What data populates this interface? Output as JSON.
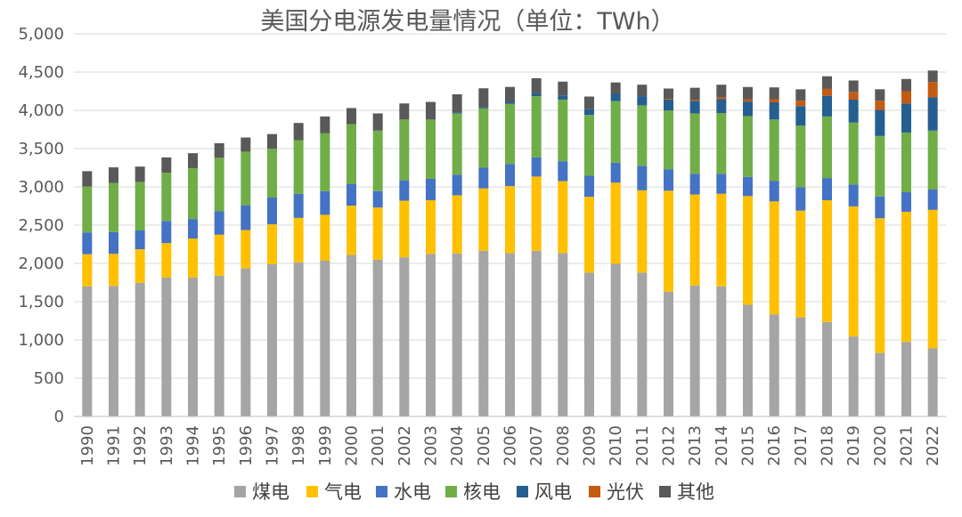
{
  "chart_data": {
    "type": "stacked-bar",
    "title": "美国分电源发电量情况（单位：TWh）",
    "xlabel": "",
    "ylabel": "",
    "ylim": [
      0,
      5000
    ],
    "ytick_step": 500,
    "ytick_labels": [
      "0",
      "500",
      "1,000",
      "1,500",
      "2,000",
      "2,500",
      "3,000",
      "3,500",
      "4,000",
      "4,500",
      "5,000"
    ],
    "grid": true,
    "legend_position": "bottom",
    "categories": [
      "1990",
      "1991",
      "1992",
      "1993",
      "1994",
      "1995",
      "1996",
      "1997",
      "1998",
      "1999",
      "2000",
      "2001",
      "2002",
      "2003",
      "2004",
      "2005",
      "2006",
      "2007",
      "2008",
      "2009",
      "2010",
      "2011",
      "2012",
      "2013",
      "2014",
      "2015",
      "2016",
      "2017",
      "2018",
      "2019",
      "2020",
      "2021",
      "2022"
    ],
    "series": [
      {
        "name": "煤电",
        "color": "#a5a5a5",
        "values": [
          1700,
          1705,
          1745,
          1815,
          1815,
          1840,
          1935,
          1990,
          2015,
          2035,
          2110,
          2050,
          2080,
          2125,
          2130,
          2165,
          2135,
          2165,
          2135,
          1880,
          1995,
          1880,
          1630,
          1710,
          1700,
          1460,
          1335,
          1295,
          1235,
          1045,
          830,
          975,
          890
        ]
      },
      {
        "name": "气电",
        "color": "#ffc000",
        "values": [
          420,
          420,
          440,
          450,
          510,
          535,
          500,
          520,
          580,
          600,
          645,
          680,
          740,
          700,
          760,
          815,
          875,
          970,
          940,
          990,
          1060,
          1075,
          1320,
          1190,
          1210,
          1420,
          1475,
          1395,
          1590,
          1700,
          1760,
          1700,
          1810
        ]
      },
      {
        "name": "水电",
        "color": "#4472c4",
        "values": [
          285,
          285,
          245,
          290,
          255,
          305,
          325,
          350,
          315,
          310,
          280,
          215,
          265,
          280,
          270,
          270,
          290,
          250,
          260,
          275,
          260,
          320,
          280,
          270,
          260,
          250,
          270,
          305,
          290,
          285,
          285,
          255,
          265
        ]
      },
      {
        "name": "核电",
        "color": "#70ad47",
        "values": [
          600,
          640,
          635,
          630,
          665,
          700,
          700,
          640,
          700,
          755,
          785,
          790,
          795,
          775,
          800,
          775,
          785,
          800,
          805,
          795,
          805,
          790,
          770,
          790,
          795,
          795,
          800,
          805,
          805,
          810,
          790,
          780,
          770
        ]
      },
      {
        "name": "风电",
        "color": "#255e91",
        "values": [
          0,
          0,
          0,
          0,
          0,
          0,
          0,
          0,
          0,
          0,
          0,
          0,
          0,
          0,
          15,
          18,
          26,
          35,
          55,
          75,
          95,
          120,
          140,
          165,
          180,
          190,
          225,
          255,
          270,
          300,
          340,
          380,
          435
        ]
      },
      {
        "name": "光伏",
        "color": "#c55a11",
        "values": [
          0,
          0,
          0,
          0,
          0,
          0,
          0,
          0,
          0,
          0,
          0,
          0,
          0,
          0,
          0,
          0,
          0,
          0,
          0,
          0,
          0,
          0,
          10,
          15,
          25,
          30,
          40,
          70,
          90,
          100,
          120,
          160,
          200
        ]
      },
      {
        "name": "其他",
        "color": "#595959",
        "values": [
          200,
          205,
          200,
          200,
          195,
          190,
          185,
          190,
          225,
          220,
          210,
          225,
          210,
          230,
          235,
          245,
          195,
          200,
          180,
          165,
          150,
          150,
          135,
          155,
          165,
          160,
          155,
          150,
          165,
          150,
          150,
          160,
          150
        ]
      }
    ]
  }
}
